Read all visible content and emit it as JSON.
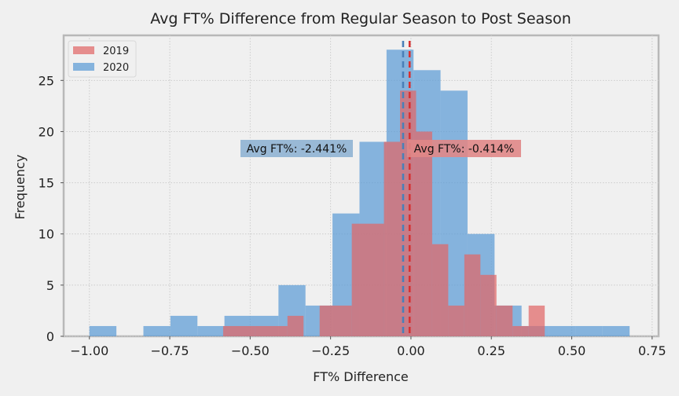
{
  "chart_data": {
    "type": "bar",
    "title": "Avg FT% Difference from Regular Season to Post Season",
    "xlabel": "FT% Difference",
    "ylabel": "Frequency",
    "xlim": [
      -1.08,
      0.77
    ],
    "ylim": [
      0,
      29.4
    ],
    "xticks": [
      -1.0,
      -0.75,
      -0.5,
      -0.25,
      0.0,
      0.25,
      0.5,
      0.75
    ],
    "xtick_labels": [
      "−1.00",
      "−0.75",
      "−0.50",
      "−0.25",
      "0.00",
      "0.25",
      "0.50",
      "0.75"
    ],
    "yticks": [
      0,
      5,
      10,
      15,
      20,
      25
    ],
    "ytick_labels": [
      "0",
      "5",
      "10",
      "15",
      "20",
      "25"
    ],
    "grid": true,
    "legend": "top-left",
    "series": [
      {
        "name": "2020",
        "color": "#5b9bd5",
        "bins": [
          [
            -1.0,
            -0.916,
            1
          ],
          [
            -0.916,
            -0.832,
            0
          ],
          [
            -0.832,
            -0.748,
            1
          ],
          [
            -0.748,
            -0.664,
            2
          ],
          [
            -0.664,
            -0.58,
            1
          ],
          [
            -0.58,
            -0.496,
            2
          ],
          [
            -0.496,
            -0.412,
            2
          ],
          [
            -0.412,
            -0.328,
            5
          ],
          [
            -0.328,
            -0.244,
            3
          ],
          [
            -0.244,
            -0.16,
            12
          ],
          [
            -0.16,
            -0.076,
            19
          ],
          [
            -0.076,
            0.008,
            28
          ],
          [
            0.008,
            0.092,
            26
          ],
          [
            0.092,
            0.176,
            24
          ],
          [
            0.176,
            0.26,
            10
          ],
          [
            0.26,
            0.344,
            3
          ],
          [
            0.344,
            0.428,
            1
          ],
          [
            0.428,
            0.512,
            1
          ],
          [
            0.512,
            0.596,
            1
          ],
          [
            0.596,
            0.68,
            1
          ]
        ],
        "mean_line": -0.02441,
        "annotation": "Avg FT%: -2.441%"
      },
      {
        "name": "2019",
        "color": "#e06666",
        "bins": [
          [
            -0.584,
            -0.484,
            1
          ],
          [
            -0.484,
            -0.384,
            1
          ],
          [
            -0.384,
            -0.334,
            2
          ],
          [
            -0.334,
            -0.284,
            0
          ],
          [
            -0.284,
            -0.184,
            3
          ],
          [
            -0.184,
            -0.084,
            11
          ],
          [
            -0.084,
            -0.034,
            19
          ],
          [
            -0.034,
            0.016,
            24
          ],
          [
            0.016,
            0.066,
            20
          ],
          [
            0.066,
            0.116,
            9
          ],
          [
            0.116,
            0.166,
            3
          ],
          [
            0.166,
            0.216,
            8
          ],
          [
            0.216,
            0.266,
            6
          ],
          [
            0.266,
            0.316,
            3
          ],
          [
            0.316,
            0.366,
            1
          ],
          [
            0.366,
            0.416,
            3
          ]
        ],
        "mean_line": -0.00414,
        "annotation": "Avg FT%: -0.414%"
      }
    ],
    "legend_order": [
      "2019",
      "2020"
    ]
  }
}
